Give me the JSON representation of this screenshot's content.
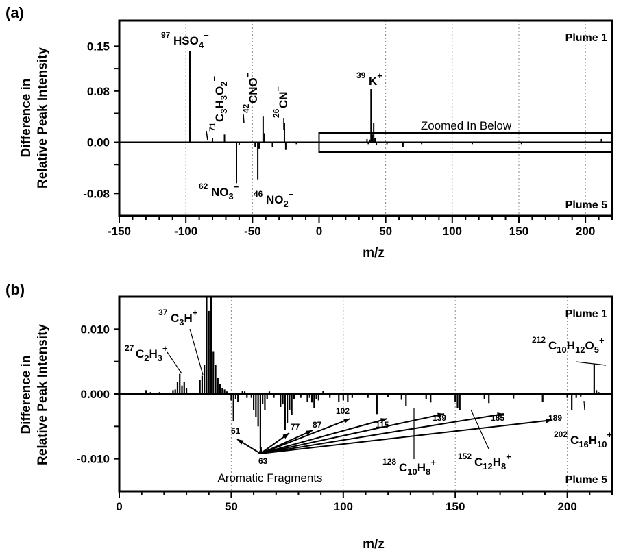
{
  "chart_data": [
    {
      "panel": "(a)",
      "type": "bar",
      "xlabel": "m/z",
      "ylabel": [
        "Difference in",
        "Relative Peak Intensity"
      ],
      "xlim": [
        -150,
        220
      ],
      "ylim": [
        -0.115,
        0.19
      ],
      "xticks": [
        "-150",
        "-100",
        "-50",
        "0",
        "50",
        "100",
        "150",
        "200"
      ],
      "yticks": [
        "0.15",
        "0.08",
        "0.00",
        "-0.08"
      ],
      "grid": "vertical dotted",
      "top_label": "Plume 1",
      "bottom_label": "Plume 5",
      "box_label": "Zoomed In Below",
      "box_range": [
        0,
        220
      ],
      "bars": [
        {
          "x": -97,
          "y": 0.142
        },
        {
          "x": -80,
          "y": 0.006
        },
        {
          "x": -71,
          "y": 0.012
        },
        {
          "x": -62,
          "y": -0.064
        },
        {
          "x": -60,
          "y": -0.004
        },
        {
          "x": -48,
          "y": -0.008
        },
        {
          "x": -46,
          "y": -0.058
        },
        {
          "x": -45,
          "y": -0.01
        },
        {
          "x": -42,
          "y": 0.04
        },
        {
          "x": -41,
          "y": 0.014
        },
        {
          "x": -35,
          "y": -0.007
        },
        {
          "x": -26,
          "y": 0.03
        },
        {
          "x": -25,
          "y": -0.012
        },
        {
          "x": -17,
          "y": -0.003
        },
        {
          "x": 36,
          "y": 0.005
        },
        {
          "x": 37,
          "y": -0.003
        },
        {
          "x": 38,
          "y": 0.004
        },
        {
          "x": 39,
          "y": 0.083
        },
        {
          "x": 40,
          "y": 0.012
        },
        {
          "x": 41,
          "y": 0.03
        },
        {
          "x": 42,
          "y": 0.006
        },
        {
          "x": 43,
          "y": -0.004
        },
        {
          "x": 51,
          "y": -0.003
        },
        {
          "x": 63,
          "y": -0.008
        },
        {
          "x": 77,
          "y": -0.003
        },
        {
          "x": 115,
          "y": -0.003
        },
        {
          "x": 152,
          "y": -0.003
        },
        {
          "x": 212,
          "y": 0.005
        }
      ],
      "labels": [
        {
          "mass": "97",
          "formula": "HSO4-",
          "x": -97
        },
        {
          "mass": "71",
          "formula": "C3H3O2-",
          "x": -71
        },
        {
          "mass": "42",
          "formula": "CNO-",
          "x": -42
        },
        {
          "mass": "26",
          "formula": "CN-",
          "x": -26
        },
        {
          "mass": "39",
          "formula": "K+",
          "x": 39
        },
        {
          "mass": "62",
          "formula": "NO3-",
          "x": -62
        },
        {
          "mass": "46",
          "formula": "NO2-",
          "x": -46
        }
      ]
    },
    {
      "panel": "(b)",
      "type": "bar",
      "xlabel": "m/z",
      "ylabel": [
        "Difference in",
        "Relative Peak Intensity"
      ],
      "xlim": [
        0,
        220
      ],
      "ylim": [
        -0.015,
        0.015
      ],
      "xticks": [
        "0",
        "50",
        "100",
        "150",
        "200"
      ],
      "yticks": [
        "0.010",
        "0.000",
        "-0.010"
      ],
      "grid": "vertical dotted",
      "top_label": "Plume 1",
      "bottom_label": "Plume 5",
      "fragments_label": "Aromatic Fragments",
      "fragment_masses": [
        "51",
        "63",
        "77",
        "87",
        "102",
        "115",
        "139",
        "165",
        "189"
      ],
      "bars": [
        {
          "x": 12,
          "y": 0.0006
        },
        {
          "x": 14,
          "y": 0.0003
        },
        {
          "x": 15,
          "y": 0.0002
        },
        {
          "x": 18,
          "y": 0.0003
        },
        {
          "x": 24,
          "y": 0.0006
        },
        {
          "x": 25,
          "y": 0.0007
        },
        {
          "x": 26,
          "y": 0.0019
        },
        {
          "x": 27,
          "y": 0.0031
        },
        {
          "x": 28,
          "y": 0.0013
        },
        {
          "x": 29,
          "y": 0.0019
        },
        {
          "x": 30,
          "y": 0.0009
        },
        {
          "x": 36,
          "y": 0.0022
        },
        {
          "x": 37,
          "y": 0.0028
        },
        {
          "x": 38,
          "y": 0.0045
        },
        {
          "x": 39,
          "y": 0.015
        },
        {
          "x": 40,
          "y": 0.0128
        },
        {
          "x": 41,
          "y": 0.015
        },
        {
          "x": 42,
          "y": 0.0065
        },
        {
          "x": 43,
          "y": 0.0045
        },
        {
          "x": 44,
          "y": 0.0025
        },
        {
          "x": 45,
          "y": 0.0015
        },
        {
          "x": 46,
          "y": 0.0009
        },
        {
          "x": 47,
          "y": 0.0007
        },
        {
          "x": 48,
          "y": 0.0004
        },
        {
          "x": 50,
          "y": -0.001
        },
        {
          "x": 51,
          "y": -0.0042
        },
        {
          "x": 52,
          "y": -0.0008
        },
        {
          "x": 53,
          "y": -0.0012
        },
        {
          "x": 55,
          "y": 0.0005
        },
        {
          "x": 56,
          "y": 0.0004
        },
        {
          "x": 57,
          "y": -0.0006
        },
        {
          "x": 59,
          "y": -0.0006
        },
        {
          "x": 60,
          "y": -0.0025
        },
        {
          "x": 61,
          "y": -0.0035
        },
        {
          "x": 62,
          "y": -0.005
        },
        {
          "x": 63,
          "y": -0.0085
        },
        {
          "x": 64,
          "y": -0.0015
        },
        {
          "x": 65,
          "y": -0.0025
        },
        {
          "x": 66,
          "y": -0.0008
        },
        {
          "x": 67,
          "y": 0.0004
        },
        {
          "x": 69,
          "y": -0.0006
        },
        {
          "x": 72,
          "y": -0.002
        },
        {
          "x": 73,
          "y": -0.0015
        },
        {
          "x": 74,
          "y": -0.0055
        },
        {
          "x": 75,
          "y": -0.0045
        },
        {
          "x": 76,
          "y": -0.0025
        },
        {
          "x": 77,
          "y": -0.0032
        },
        {
          "x": 78,
          "y": -0.0008
        },
        {
          "x": 81,
          "y": -0.0006
        },
        {
          "x": 84,
          "y": -0.0012
        },
        {
          "x": 85,
          "y": -0.0006
        },
        {
          "x": 86,
          "y": -0.0013
        },
        {
          "x": 87,
          "y": -0.0022
        },
        {
          "x": 88,
          "y": -0.0008
        },
        {
          "x": 89,
          "y": -0.001
        },
        {
          "x": 91,
          "y": 0.0005
        },
        {
          "x": 94,
          "y": -0.0006
        },
        {
          "x": 98,
          "y": -0.0012
        },
        {
          "x": 100,
          "y": -0.001
        },
        {
          "x": 102,
          "y": -0.0012
        },
        {
          "x": 104,
          "y": -0.0006
        },
        {
          "x": 111,
          "y": -0.0006
        },
        {
          "x": 115,
          "y": -0.0031
        },
        {
          "x": 120,
          "y": -0.0005
        },
        {
          "x": 126,
          "y": -0.0009
        },
        {
          "x": 128,
          "y": -0.0018
        },
        {
          "x": 137,
          "y": -0.0008
        },
        {
          "x": 139,
          "y": -0.0013
        },
        {
          "x": 150,
          "y": -0.0012
        },
        {
          "x": 151,
          "y": -0.0022
        },
        {
          "x": 152,
          "y": -0.0025
        },
        {
          "x": 163,
          "y": -0.0008
        },
        {
          "x": 165,
          "y": -0.0014
        },
        {
          "x": 176,
          "y": -0.0007
        },
        {
          "x": 189,
          "y": -0.0012
        },
        {
          "x": 200,
          "y": -0.0006
        },
        {
          "x": 202,
          "y": -0.0025
        },
        {
          "x": 204,
          "y": -0.0006
        },
        {
          "x": 206,
          "y": -0.0004
        },
        {
          "x": 212,
          "y": 0.0047
        },
        {
          "x": 213,
          "y": 0.0006
        },
        {
          "x": 214,
          "y": 0.0003
        }
      ],
      "labels": [
        {
          "mass": "27",
          "formula": "C2H3+",
          "x": 27
        },
        {
          "mass": "37",
          "formula": "C3H+",
          "x": 37
        },
        {
          "mass": "212",
          "formula": "C10H12O5+",
          "x": 212
        },
        {
          "mass": "202",
          "formula": "C16H10+",
          "x": 202
        },
        {
          "mass": "128",
          "formula": "C10H8+",
          "x": 128
        },
        {
          "mass": "152",
          "formula": "C12H8+",
          "x": 152
        }
      ]
    }
  ]
}
